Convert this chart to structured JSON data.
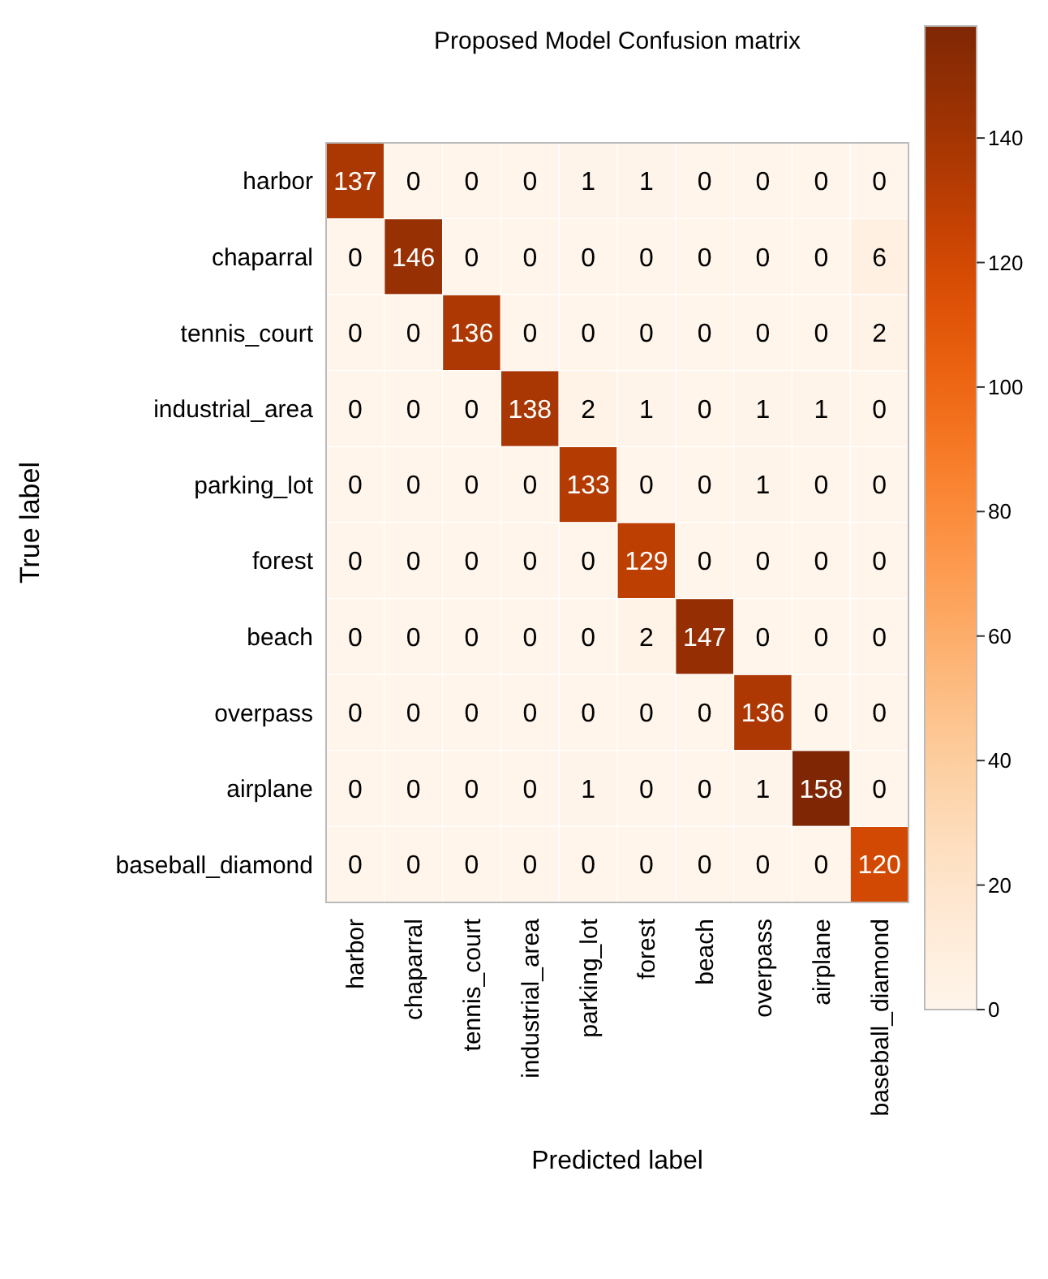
{
  "chart_data": {
    "type": "heatmap",
    "title": "Proposed Model Confusion matrix",
    "xlabel": "Predicted label",
    "ylabel": "True label",
    "categories": [
      "harbor",
      "chaparral",
      "tennis_court",
      "industrial_area",
      "parking_lot",
      "forest",
      "beach",
      "overpass",
      "airplane",
      "baseball_diamond"
    ],
    "y_categories": [
      "harbor",
      "chaparral",
      "tennis_court",
      "industrial_area",
      "parking_lot",
      "forest",
      "beach",
      "overpass",
      "airplane",
      "baseball_diamond"
    ],
    "cells": [
      [
        137,
        0,
        0,
        0,
        1,
        1,
        0,
        0,
        0,
        0
      ],
      [
        0,
        146,
        0,
        0,
        0,
        0,
        0,
        0,
        0,
        6
      ],
      [
        0,
        0,
        136,
        0,
        0,
        0,
        0,
        0,
        0,
        2
      ],
      [
        0,
        0,
        0,
        138,
        2,
        1,
        0,
        1,
        1,
        0
      ],
      [
        0,
        0,
        0,
        0,
        133,
        0,
        0,
        1,
        0,
        0
      ],
      [
        0,
        0,
        0,
        0,
        0,
        129,
        0,
        0,
        0,
        0
      ],
      [
        0,
        0,
        0,
        0,
        0,
        2,
        147,
        0,
        0,
        0
      ],
      [
        0,
        0,
        0,
        0,
        0,
        0,
        0,
        136,
        0,
        0
      ],
      [
        0,
        0,
        0,
        0,
        1,
        0,
        0,
        1,
        158,
        0
      ],
      [
        0,
        0,
        0,
        0,
        0,
        0,
        0,
        0,
        0,
        120
      ]
    ],
    "clim": [
      0,
      158
    ],
    "cticks": [
      0,
      20,
      40,
      60,
      80,
      100,
      120,
      140
    ],
    "data_labels": true
  }
}
